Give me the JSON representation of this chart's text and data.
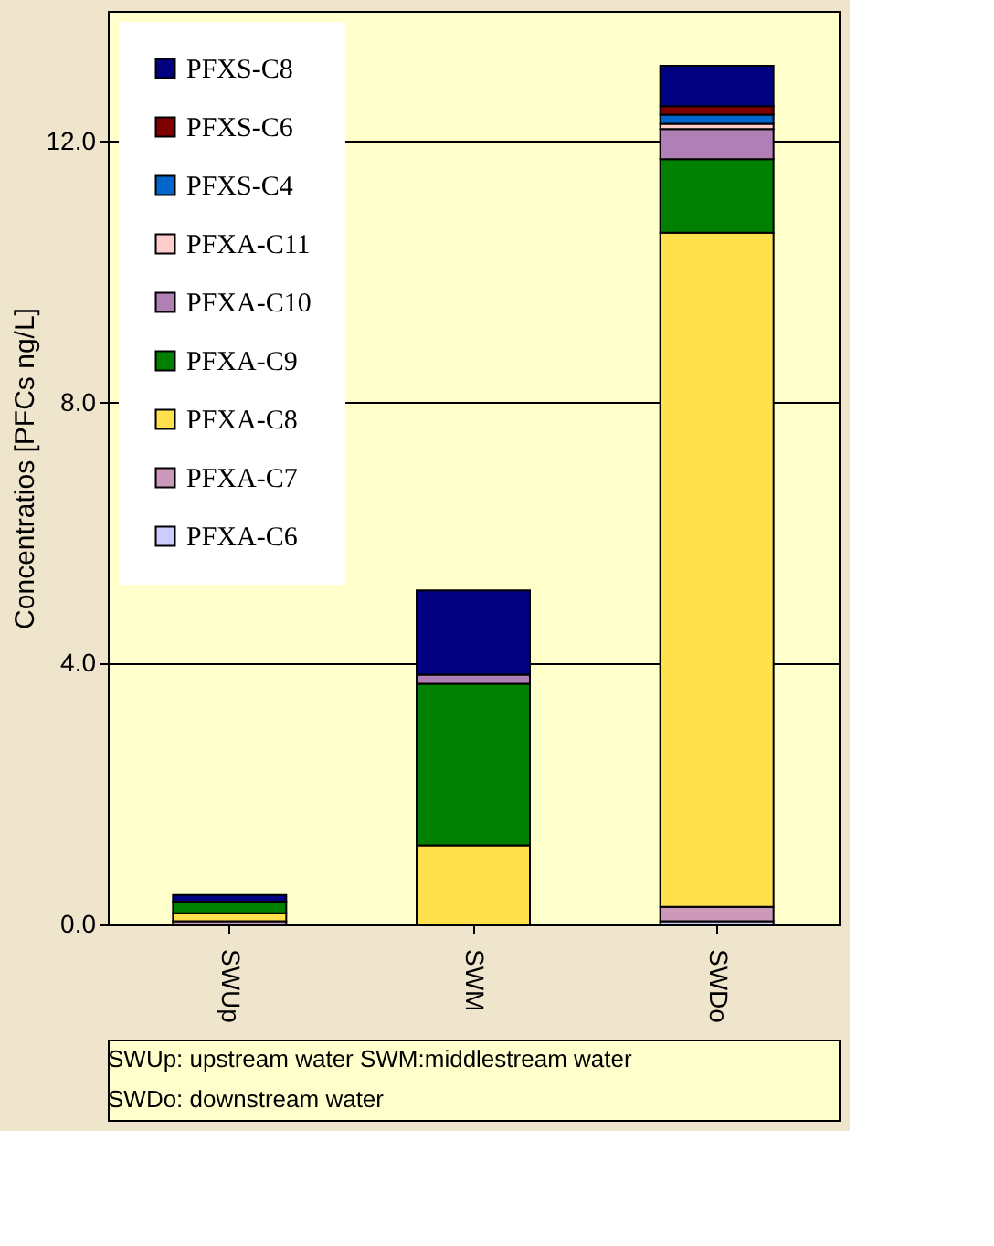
{
  "chart_data": {
    "type": "bar",
    "stacked": true,
    "ylabel": "Concentratios [PFCs  ng/L]",
    "categories": [
      "SWUp",
      "SWM",
      "SWDo"
    ],
    "series": [
      {
        "name": "PFXA-C6",
        "color": "#ccccff",
        "values": [
          null,
          null,
          0.05
        ]
      },
      {
        "name": "PFXA-C7",
        "color": "#cc99bb",
        "values": [
          0.05,
          null,
          0.22
        ]
      },
      {
        "name": "PFXA-C8",
        "color": "#ffe14d",
        "values": [
          0.12,
          1.21,
          10.33
        ]
      },
      {
        "name": "PFXA-C9",
        "color": "#008000",
        "values": [
          0.18,
          2.48,
          1.13
        ]
      },
      {
        "name": "PFXA-C10",
        "color": "#b07fb5",
        "values": [
          null,
          0.14,
          0.46
        ]
      },
      {
        "name": "PFXA-C11",
        "color": "#ffcccc",
        "values": [
          null,
          null,
          0.08
        ]
      },
      {
        "name": "PFXS-C4",
        "color": "#0066cc",
        "values": [
          null,
          null,
          0.14
        ]
      },
      {
        "name": "PFXS-C6",
        "color": "#800000",
        "values": [
          null,
          null,
          0.13
        ]
      },
      {
        "name": "PFXS-C8",
        "color": "#000080",
        "values": [
          0.1,
          1.29,
          0.62
        ]
      }
    ],
    "ylim": [
      0,
      14
    ],
    "yticks": [
      {
        "value": 0,
        "label": "0.0"
      },
      {
        "value": 4,
        "label": "4.0"
      },
      {
        "value": 8,
        "label": "8.0"
      },
      {
        "value": 12,
        "label": "12.0"
      }
    ],
    "grid": "y",
    "legend": "top left",
    "annotations": [
      "SWUp:  upstream water   SWM:middlestream water",
      "SWDo: downstream water"
    ]
  }
}
